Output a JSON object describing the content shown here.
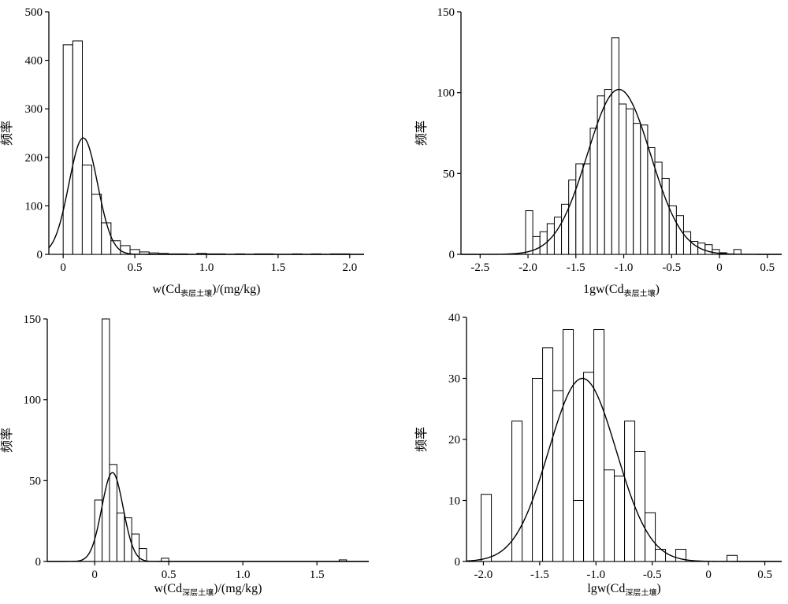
{
  "chart_data": [
    {
      "type": "bar",
      "subtype": "histogram-with-normal-curve",
      "xlabel_main": "w(Cd",
      "xlabel_sub": "表层土壤",
      "xlabel_tail": ")/(mg/kg)",
      "ylabel": "频率",
      "xlim": [
        -0.1,
        2.1
      ],
      "ylim": [
        0,
        500
      ],
      "xticks": [
        0,
        0.5,
        1.0,
        1.5,
        2.0
      ],
      "xtick_labels": [
        "0",
        "0.5",
        "1.0",
        "1.5",
        "2.0"
      ],
      "yticks": [
        0,
        100,
        200,
        300,
        400,
        500
      ],
      "ytick_labels": [
        "0",
        "100",
        "200",
        "300",
        "400",
        "500"
      ],
      "bin_width": 0.0667,
      "bin_starts": [
        0,
        0.067,
        0.133,
        0.2,
        0.267,
        0.333,
        0.4,
        0.467,
        0.533,
        0.6,
        0.667,
        0.733,
        0.8,
        0.867,
        0.933,
        1.0,
        1.067,
        1.133,
        1.2,
        1.267,
        1.333,
        1.4,
        1.467,
        1.533,
        1.6,
        1.667,
        1.733,
        1.8,
        1.867,
        1.933
      ],
      "values": [
        432,
        440,
        184,
        124,
        65,
        28,
        18,
        10,
        5,
        3,
        2,
        1,
        1,
        0,
        2,
        1,
        1,
        0,
        1,
        0,
        1,
        1,
        0,
        0,
        1,
        0,
        1,
        0,
        1,
        1
      ],
      "normal_curve": {
        "mean": 0.14,
        "sd": 0.1,
        "peak": 240
      }
    },
    {
      "type": "bar",
      "subtype": "histogram-with-normal-curve",
      "xlabel_main": "1gw(Cd",
      "xlabel_sub": "表层土壤",
      "xlabel_tail": ")",
      "ylabel": "频率",
      "xlim": [
        -2.7,
        0.65
      ],
      "ylim": [
        0,
        150
      ],
      "xticks": [
        -2.5,
        -2.0,
        -1.5,
        -1.0,
        -0.5,
        0,
        0.5
      ],
      "xtick_labels": [
        "-2.5",
        "-2.0",
        "-1.5",
        "-1.0",
        "-0.5",
        "0",
        "0.5"
      ],
      "yticks": [
        0,
        50,
        100,
        150
      ],
      "ytick_labels": [
        "0",
        "50",
        "100",
        "150"
      ],
      "bin_width": 0.075,
      "bin_starts": [
        -2.025,
        -1.95,
        -1.875,
        -1.8,
        -1.725,
        -1.65,
        -1.575,
        -1.5,
        -1.425,
        -1.35,
        -1.275,
        -1.2,
        -1.125,
        -1.05,
        -0.975,
        -0.9,
        -0.825,
        -0.75,
        -0.675,
        -0.6,
        -0.525,
        -0.45,
        -0.375,
        -0.3,
        -0.225,
        -0.15,
        -0.075,
        0,
        0.075,
        0.15,
        0.225
      ],
      "values": [
        27,
        11,
        14,
        19,
        23,
        31,
        46,
        56,
        56,
        78,
        98,
        102,
        134,
        93,
        90,
        81,
        80,
        66,
        57,
        47,
        30,
        24,
        14,
        8,
        7,
        6,
        3,
        1,
        0,
        3,
        0
      ],
      "normal_curve": {
        "mean": -1.05,
        "sd": 0.33,
        "peak": 102
      }
    },
    {
      "type": "bar",
      "subtype": "histogram-with-normal-curve",
      "xlabel_main": "w(Cd",
      "xlabel_sub": "深层土壤",
      "xlabel_tail": ")/(mg/kg)",
      "ylabel": "频率",
      "xlim": [
        -0.32,
        1.85
      ],
      "ylim": [
        0,
        150
      ],
      "xticks": [
        0,
        0.5,
        1.0,
        1.5
      ],
      "xtick_labels": [
        "0",
        "0.5",
        "1.0",
        "1.5"
      ],
      "yticks": [
        0,
        50,
        100,
        150
      ],
      "ytick_labels": [
        "0",
        "50",
        "100",
        "150"
      ],
      "bin_width": 0.05,
      "bin_starts": [
        0,
        0.05,
        0.1,
        0.15,
        0.2,
        0.25,
        0.3,
        0.35,
        0.4,
        0.45,
        1.65
      ],
      "values": [
        38,
        150,
        60,
        30,
        27,
        17,
        8,
        0,
        0,
        2,
        1
      ],
      "normal_curve": {
        "mean": 0.12,
        "sd": 0.072,
        "peak": 55
      }
    },
    {
      "type": "bar",
      "subtype": "histogram-with-normal-curve",
      "xlabel_main": "lgw(Cd",
      "xlabel_sub": "深层土壤",
      "xlabel_tail": ")",
      "ylabel": "频率",
      "xlim": [
        -2.15,
        0.65
      ],
      "ylim": [
        0,
        40
      ],
      "xticks": [
        -2.0,
        -1.5,
        -1.0,
        -0.5,
        0,
        0.5
      ],
      "xtick_labels": [
        "-2.0",
        "-1.5",
        "-1.0",
        "-0.5",
        "0",
        "0.5"
      ],
      "yticks": [
        0,
        10,
        20,
        30,
        40
      ],
      "ytick_labels": [
        "0",
        "10",
        "20",
        "30",
        "40"
      ],
      "bin_width": 0.091,
      "bin_starts": [
        -2.02,
        -1.929,
        -1.838,
        -1.747,
        -1.656,
        -1.565,
        -1.474,
        -1.383,
        -1.292,
        -1.201,
        -1.11,
        -1.019,
        -0.928,
        -0.837,
        -0.746,
        -0.655,
        -0.564,
        -0.473,
        -0.382,
        -0.291,
        -0.2,
        -0.109,
        -0.018,
        0.073,
        0.164
      ],
      "values": [
        11,
        0,
        0,
        23,
        0,
        30,
        35,
        28,
        38,
        10,
        31,
        38,
        15,
        14,
        23,
        18,
        8,
        2,
        0,
        2,
        0,
        0,
        0,
        0,
        1
      ],
      "normal_curve": {
        "mean": -1.12,
        "sd": 0.3,
        "peak": 30
      }
    }
  ]
}
